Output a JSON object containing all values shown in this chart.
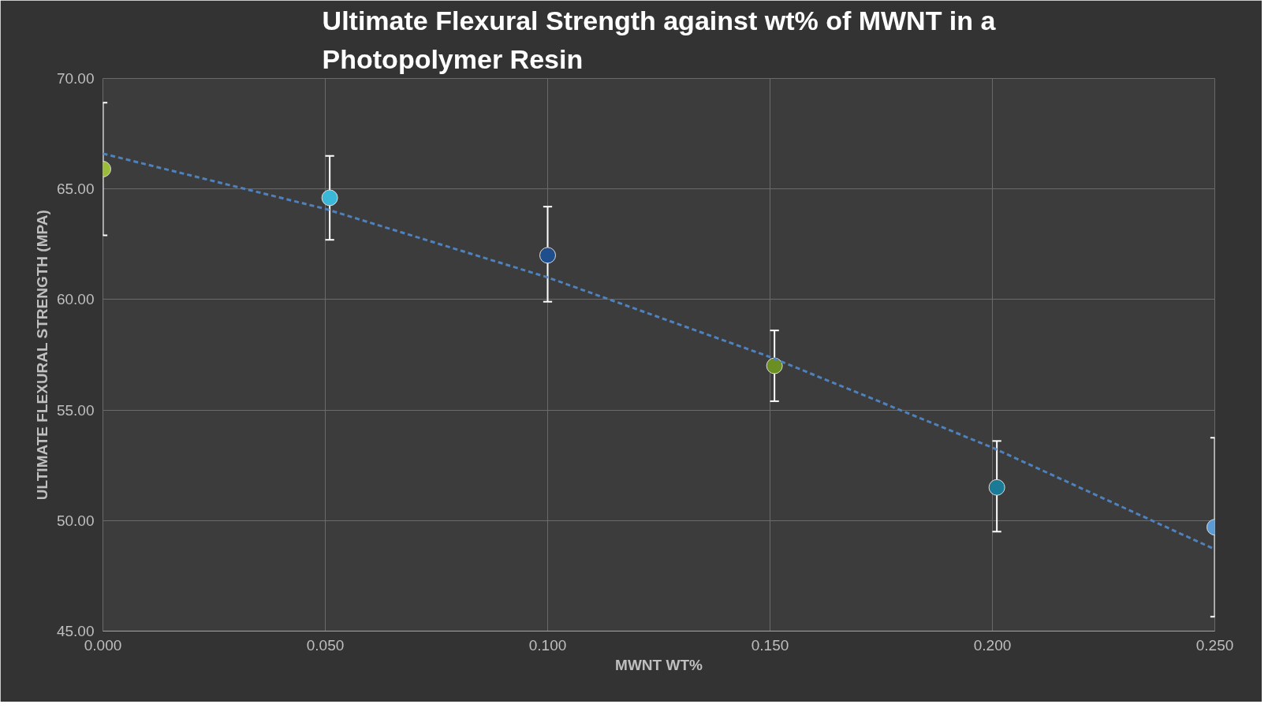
{
  "chart_data": {
    "type": "scatter",
    "title": "Ultimate Flexural Strength against wt% of MWNT in a Photopolymer Resin",
    "xlabel": "MWNT WT%",
    "ylabel": "ULTIMATE FLEXURAL STRENGTH (MPA)",
    "x": [
      0.0,
      0.051,
      0.1,
      0.151,
      0.201,
      0.25
    ],
    "series": [
      {
        "marker": "circle",
        "values": [
          65.9,
          64.6,
          62.0,
          57.0,
          51.5,
          49.7
        ],
        "colors": [
          "#9bbb3a",
          "#3bb8d8",
          "#1f4e8c",
          "#6b8f23",
          "#1b7a95",
          "#5b9bd5"
        ],
        "errors": [
          3.0,
          1.9,
          [
            59.9,
            64.2
          ],
          1.6,
          [
            49.5,
            53.6
          ],
          4.05
        ]
      },
      {
        "type": "line",
        "x": [
          0.0,
          0.05,
          0.1,
          0.15,
          0.2,
          0.25
        ],
        "values": [
          66.6,
          64.1,
          61.0,
          57.4,
          53.3,
          48.7
        ],
        "color": "#4f81bd",
        "line_style": "dashed"
      }
    ],
    "xlim": [
      0,
      0.25
    ],
    "ylim": [
      45,
      70
    ],
    "xticks": [
      {
        "value": 0,
        "label": "0.000"
      },
      {
        "value": 0.05,
        "label": "0.050"
      },
      {
        "value": 0.1,
        "label": "0.100"
      },
      {
        "value": 0.15,
        "label": "0.150"
      },
      {
        "value": 0.2,
        "label": "0.200"
      },
      {
        "value": 0.25,
        "label": "0.250"
      }
    ],
    "yticks": [
      {
        "value": 45,
        "label": "45.00"
      },
      {
        "value": 50,
        "label": "50.00"
      },
      {
        "value": 55,
        "label": "55.00"
      },
      {
        "value": 60,
        "label": "60.00"
      },
      {
        "value": 65,
        "label": "65.00"
      },
      {
        "value": 70,
        "label": "70.00"
      }
    ],
    "grid": true
  }
}
